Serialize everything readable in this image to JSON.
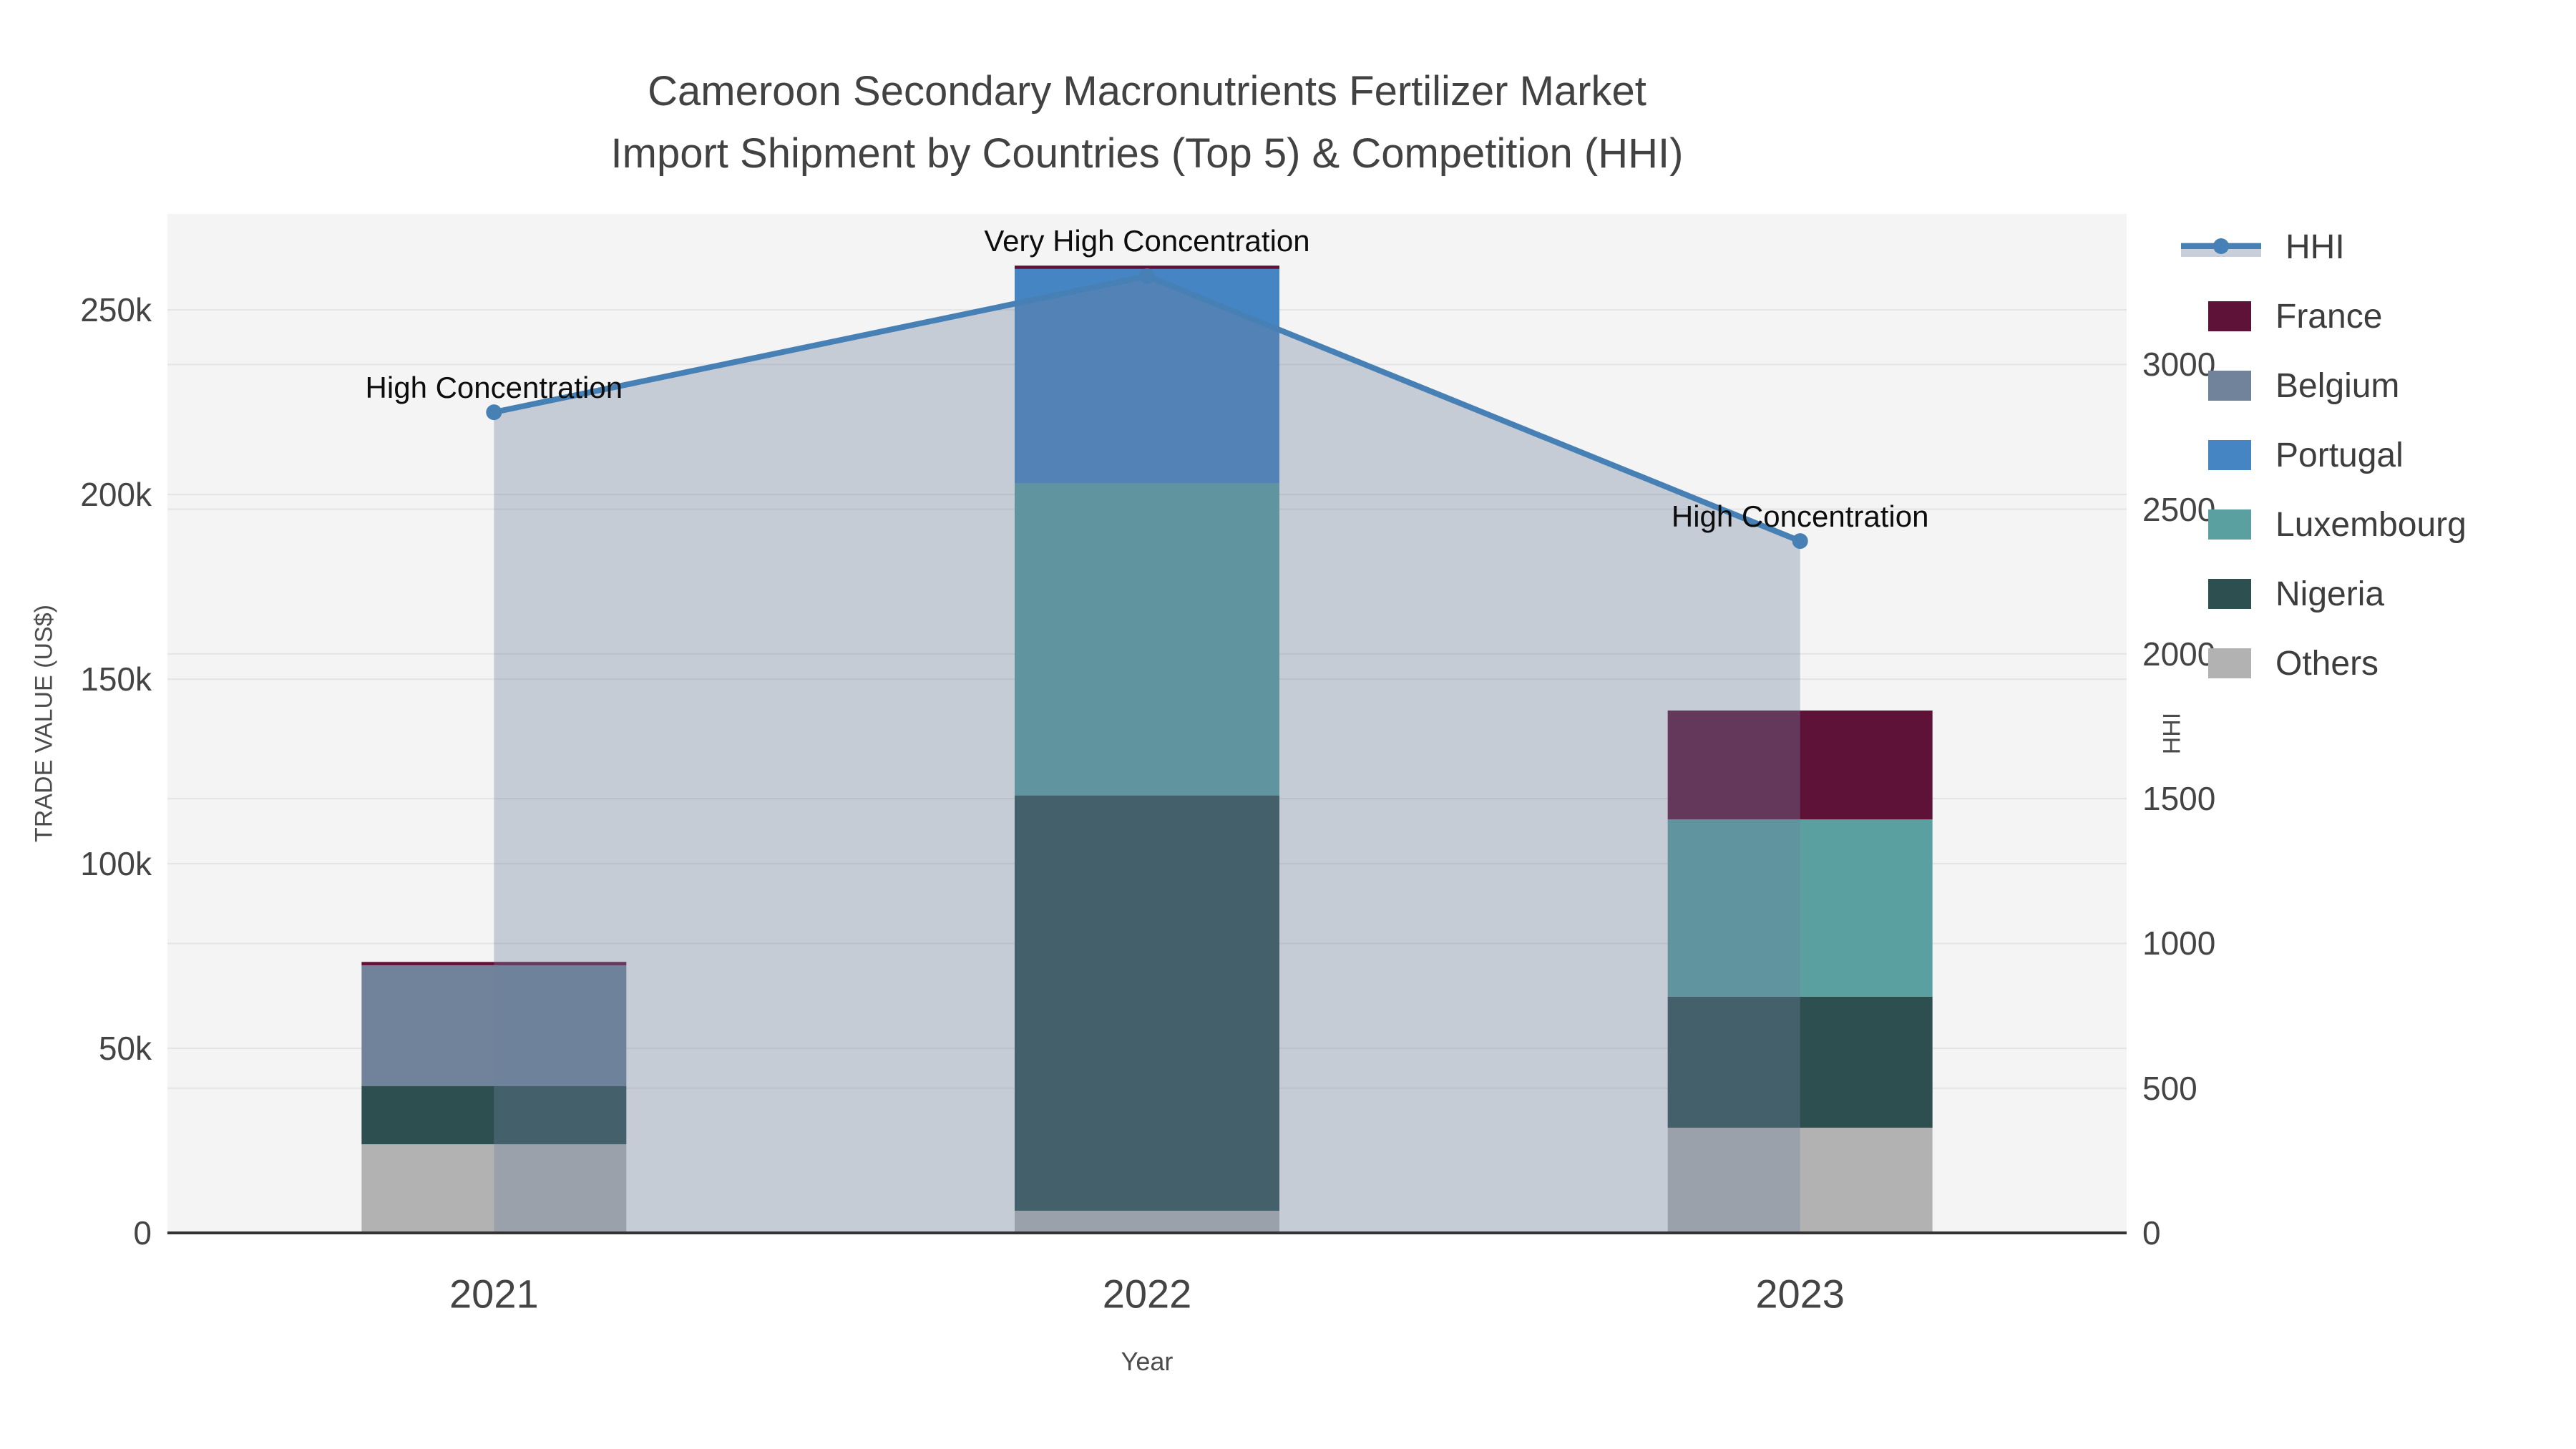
{
  "title": {
    "line1": "Cameroon Secondary Macronutrients Fertilizer Market",
    "line2": "Import Shipment by Countries (Top 5) & Competition (HHI)"
  },
  "axes": {
    "left": {
      "title": "TRADE VALUE (US$)",
      "ticks": [
        {
          "v": 0,
          "label": "0"
        },
        {
          "v": 50000,
          "label": "50k"
        },
        {
          "v": 100000,
          "label": "100k"
        },
        {
          "v": 150000,
          "label": "150k"
        },
        {
          "v": 200000,
          "label": "200k"
        },
        {
          "v": 250000,
          "label": "250k"
        }
      ]
    },
    "right": {
      "title": "HHI",
      "ticks": [
        {
          "v": 0,
          "label": "0"
        },
        {
          "v": 500,
          "label": "500"
        },
        {
          "v": 1000,
          "label": "1000"
        },
        {
          "v": 1500,
          "label": "1500"
        },
        {
          "v": 2000,
          "label": "2000"
        },
        {
          "v": 2500,
          "label": "2500"
        },
        {
          "v": 3000,
          "label": "3000"
        }
      ]
    },
    "x": {
      "title": "Year",
      "categories": [
        "2021",
        "2022",
        "2023"
      ]
    }
  },
  "legend": [
    {
      "label": "HHI",
      "type": "line",
      "color": "#4680b4"
    },
    {
      "label": "France",
      "type": "square",
      "color": "#5f1237"
    },
    {
      "label": "Belgium",
      "type": "square",
      "color": "#71839a"
    },
    {
      "label": "Portugal",
      "type": "square",
      "color": "#4585c3"
    },
    {
      "label": "Luxembourg",
      "type": "square",
      "color": "#5aa0a1"
    },
    {
      "label": "Nigeria",
      "type": "square",
      "color": "#2e4f4f"
    },
    {
      "label": "Others",
      "type": "square",
      "color": "#b2b2b2"
    }
  ],
  "annotations": [
    {
      "year": "2021",
      "text": "High Concentration"
    },
    {
      "year": "2022",
      "text": "Very High Concentration"
    },
    {
      "year": "2023",
      "text": "High Concentration"
    }
  ],
  "chart_data": {
    "type": "bar+line",
    "title": "Cameroon Secondary Macronutrients Fertilizer Market Import Shipment by Countries (Top 5) & Competition (HHI)",
    "xlabel": "Year",
    "ylabel": "TRADE VALUE (US$)",
    "y2label": "HHI",
    "categories": [
      "2021",
      "2022",
      "2023"
    ],
    "bar_mode": "stacked",
    "bar_stack_order_bottom_to_top": [
      "Others",
      "Nigeria",
      "Luxembourg",
      "Portugal",
      "Belgium",
      "France"
    ],
    "series": [
      {
        "name": "Others",
        "axis": "left",
        "color": "#b2b2b2",
        "values": [
          24000,
          6000,
          28500
        ]
      },
      {
        "name": "Nigeria",
        "axis": "left",
        "color": "#2e4f4f",
        "values": [
          15800,
          112500,
          35500
        ]
      },
      {
        "name": "Luxembourg",
        "axis": "left",
        "color": "#5aa0a1",
        "values": [
          0,
          84500,
          48000
        ]
      },
      {
        "name": "Portugal",
        "axis": "left",
        "color": "#4585c3",
        "values": [
          0,
          58100,
          0
        ]
      },
      {
        "name": "Belgium",
        "axis": "left",
        "color": "#71839a",
        "values": [
          32700,
          0,
          0
        ]
      },
      {
        "name": "France",
        "axis": "left",
        "color": "#5f1237",
        "values": [
          900,
          900,
          29500
        ]
      }
    ],
    "bar_totals": [
      73400,
      262000,
      141500
    ],
    "line_series": {
      "name": "HHI",
      "axis": "right",
      "color": "#4680b4",
      "area_fill": "rgba(110,128,157,0.35)",
      "values": [
        2835,
        3305,
        2390
      ]
    },
    "ylim": [
      0,
      276000
    ],
    "y2lim": [
      0,
      3520
    ],
    "grid": true,
    "legend_position": "right",
    "plot_bg": "#f4f4f4",
    "grid_color": "#e4e4e4",
    "axisline_color": "#333333"
  }
}
